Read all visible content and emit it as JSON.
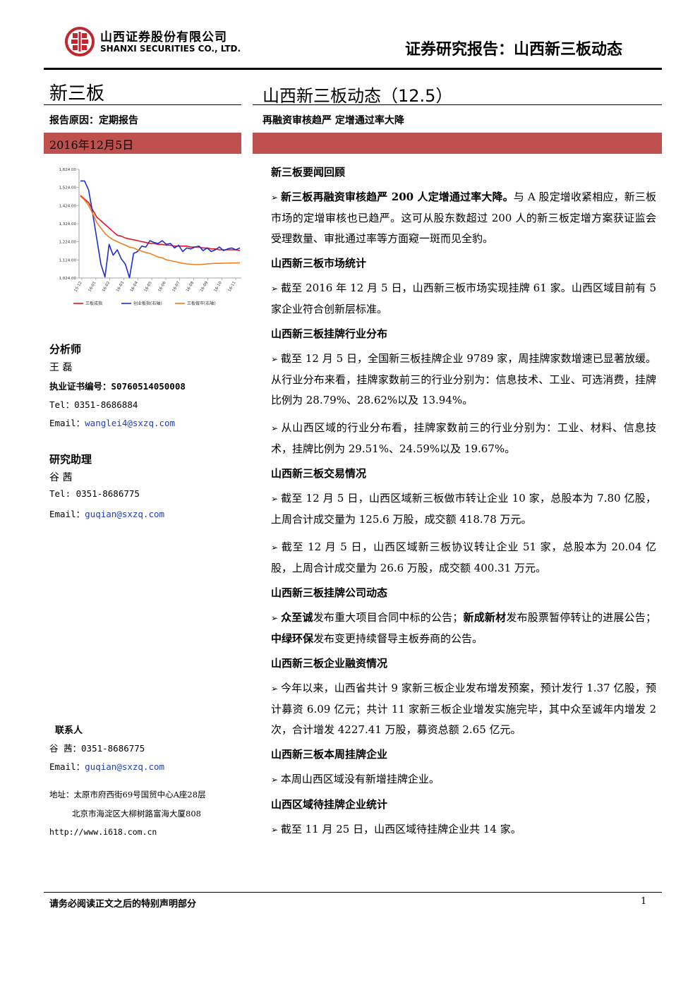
{
  "header": {
    "company_cn": "山西证券股份有限公司",
    "company_en": "SHANXI SECURITIES CO., LTD.",
    "report_type": "证券研究报告：山西新三板动态"
  },
  "left": {
    "category": "新三板",
    "report_reason": "报告原因：定期报告",
    "date": "2016年12月5日",
    "analyst_heading": "分析师",
    "analyst_name": "王 磊",
    "license_label": "执业证书编号：",
    "license_no": "S0760514050008",
    "analyst_tel": "Tel：0351-8686884",
    "analyst_email_label": "Email：",
    "analyst_email": "wanglei4@sxzq.com",
    "assistant_heading": "研究助理",
    "assistant_name": "谷 茜",
    "assistant_tel": "Tel: 0351-8686775",
    "assistant_email_label": "Email：",
    "assistant_email": "guqian@sxzq.com",
    "contact_heading": "联系人",
    "contact_line": "谷 茜：0351-8686775",
    "contact_email_label": "Email：",
    "contact_email": "guqian@sxzq.com",
    "address_1": "地址：太原市府西街69号国贸中心A座28层",
    "address_2": "北京市海淀区大柳树路富海大厦808",
    "website": "http://www.i618.com.cn"
  },
  "chart_data": {
    "type": "line",
    "y_ticks": [
      "1,024.00",
      "1,124.00",
      "1,224.00",
      "1,324.00",
      "1,424.00",
      "1,524.00",
      "1,624.00"
    ],
    "ylim": [
      1024,
      1624
    ],
    "x_ticks": [
      "15-12",
      "16-01",
      "16-02",
      "16-03",
      "16-04",
      "16-05",
      "16-06",
      "16-07",
      "16-08",
      "16-09",
      "16-10",
      "16-11"
    ],
    "series": [
      {
        "name": "三板成指",
        "color": "#e8141c",
        "values": [
          1480,
          1460,
          1440,
          1400,
          1360,
          1340,
          1320,
          1300,
          1280,
          1260,
          1255,
          1245,
          1240,
          1235,
          1230,
          1225,
          1220,
          1215,
          1215,
          1210,
          1210,
          1205,
          1205,
          1200,
          1200,
          1200,
          1200,
          1195,
          1195,
          1195,
          1190,
          1190,
          1185,
          1185,
          1180,
          1180,
          1180,
          1180,
          1180,
          1175
        ]
      },
      {
        "name": "创业板指(右轴)",
        "color": "#1c2fd0",
        "values": [
          1560,
          1560,
          1510,
          1380,
          1240,
          1100,
          1030,
          1210,
          1150,
          1180,
          1130,
          1100,
          1025,
          1160,
          1170,
          1200,
          1195,
          1230,
          1220,
          1215,
          1230,
          1210,
          1215,
          1190,
          1205,
          1170,
          1190,
          1185,
          1195,
          1200,
          1175,
          1190,
          1170,
          1180,
          1195,
          1175,
          1185,
          1190,
          1180,
          1190
        ]
      },
      {
        "name": "三板做市(右轴)",
        "color": "#f07f1e",
        "values": [
          1475,
          1455,
          1425,
          1380,
          1330,
          1300,
          1270,
          1250,
          1235,
          1225,
          1215,
          1205,
          1195,
          1190,
          1180,
          1172,
          1165,
          1160,
          1150,
          1140,
          1135,
          1125,
          1120,
          1115,
          1110,
          1105,
          1102,
          1100,
          1098,
          1098,
          1100,
          1102,
          1104,
          1105,
          1105,
          1106,
          1106,
          1107,
          1107,
          1108
        ]
      }
    ]
  },
  "main": {
    "title": "山西新三板动态（12.5）",
    "subtitle": "再融资审核趋严   定增通过率大降",
    "sections": [
      {
        "heading": "新三板要闻回顾",
        "paragraphs": [
          {
            "bold": "新三板再融资审核趋严 200 人定增通过率大降。",
            "text": "与 A 股定增收紧相应，新三板市场的定增审核也已趋严。这可从股东数超过 200 人的新三板定增方案获证监会受理数量、审批通过率等方面窥一斑而见全豹。"
          }
        ]
      },
      {
        "heading": "山西新三板市场统计",
        "paragraphs": [
          {
            "bold": "",
            "text": "截至 2016 年 12 月 5 日，山西新三板市场实现挂牌 61 家。山西区域目前有 5 家企业符合创新层标准。"
          }
        ]
      },
      {
        "heading": "山西新三板挂牌行业分布",
        "paragraphs": [
          {
            "bold": "",
            "text": "截至 12 月 5 日，全国新三板挂牌企业 9789 家，周挂牌家数增速已显著放缓。从行业分布来看，挂牌家数前三的行业分别为：信息技术、工业、可选消费，挂牌比例为 28.79%、28.62%以及 13.94%。"
          },
          {
            "bold": "",
            "text": "从山西区域的行业分布看，挂牌家数前三的行业分别为：工业、材料、信息技术，挂牌比例为 29.51%、24.59%以及 19.67%。"
          }
        ]
      },
      {
        "heading": "山西新三板交易情况",
        "paragraphs": [
          {
            "bold": "",
            "text": "截至 12 月 5 日，山西区域新三板做市转让企业 10 家，总股本为 7.80 亿股，上周合计成交量为 125.6 万股，成交额 418.78 万元。"
          },
          {
            "bold": "",
            "text": "截至 12 月 5 日，山西区域新三板协议转让企业 51 家，总股本为 20.04 亿股，上周合计成交量为 26.6 万股，成交额 400.31 万元。"
          }
        ]
      },
      {
        "heading": "山西新三板挂牌公司动态",
        "paragraphs": [
          {
            "segments": [
              {
                "b": true,
                "t": "众至诚"
              },
              {
                "b": false,
                "t": "发布重大项目合同中标的公告；"
              },
              {
                "b": true,
                "t": "新成新材"
              },
              {
                "b": false,
                "t": "发布股票暂停转让的进展公告；"
              },
              {
                "b": true,
                "t": "中绿环保"
              },
              {
                "b": false,
                "t": "发布变更持续督导主板券商的公告。"
              }
            ]
          }
        ]
      },
      {
        "heading": "山西新三板企业融资情况",
        "paragraphs": [
          {
            "bold": "",
            "text": "今年以来，山西省共计 9 家新三板企业发布增发预案，预计发行 1.37 亿股，预计募资 6.09 亿元；共计 11 家新三板企业增发实施完毕，其中众至诚年内增发 2 次，合计增发 4227.41 万股，募资总额 2.65 亿元。"
          }
        ]
      },
      {
        "heading": "山西新三板本周挂牌企业",
        "paragraphs": [
          {
            "bold": "",
            "text": "本周山西区域没有新增挂牌企业。"
          }
        ]
      },
      {
        "heading": "山西区域待挂牌企业统计",
        "paragraphs": [
          {
            "bold": "",
            "text": "截至 11 月 25 日，山西区域待挂牌企业共 14 家。"
          }
        ]
      }
    ]
  },
  "footer": {
    "notice": "请务必阅读正文之后的特别声明部分",
    "page": "1"
  },
  "bullet": "➢",
  "colors": {
    "accent_red": "#c0504d",
    "link_blue": "#1f3fbf"
  }
}
